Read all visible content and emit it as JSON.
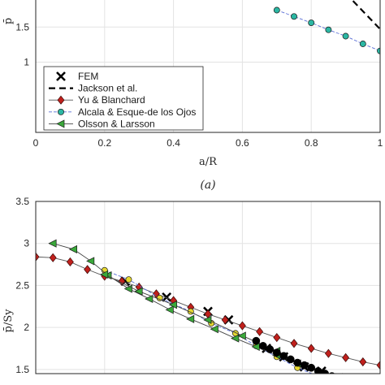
{
  "chart_data": [
    {
      "type": "line",
      "caption": "(a)",
      "xlabel": "a/R",
      "ylabel": "p̄",
      "xlim": [
        0,
        1
      ],
      "ylim": [
        0,
        2
      ],
      "x_ticks": [
        "0",
        "0.2",
        "0.4",
        "0.6",
        "0.8",
        "1"
      ],
      "y_ticks": [
        "1",
        "1.5"
      ],
      "grid": true,
      "legend_position": "bottom-left",
      "series": [
        {
          "name": "FEM",
          "marker": "x",
          "color": "#000000",
          "x": [],
          "y": []
        },
        {
          "name": "Jackson et al.",
          "line": "dashed",
          "color": "#000000",
          "x": [
            0.9,
            1.0
          ],
          "y": [
            1.98,
            1.47
          ]
        },
        {
          "name": "Yu & Blanchard",
          "marker": "diamond",
          "color": "#c0201c",
          "x": [],
          "y": []
        },
        {
          "name": "Alcala & Esque-de los Ojos",
          "marker": "circle",
          "color": "#2bb7a3",
          "x": [
            0.7,
            0.75,
            0.8,
            0.85,
            0.9,
            0.95,
            1.0
          ],
          "y": [
            1.74,
            1.65,
            1.56,
            1.46,
            1.37,
            1.26,
            1.16
          ]
        },
        {
          "name": "Olsson & Larsson",
          "marker": "triangle-left",
          "color": "#3aa83a",
          "x": [],
          "y": []
        }
      ]
    },
    {
      "type": "line",
      "xlabel": "",
      "ylabel": "p̄/Sy",
      "xlim": [
        0,
        1
      ],
      "ylim": [
        1.45,
        3.5
      ],
      "y_ticks": [
        "1.5",
        "2",
        "2.5",
        "3",
        "3.5"
      ],
      "grid": true,
      "series": [
        {
          "name": "FEM",
          "marker": "x",
          "color": "#000000",
          "x": [
            0.26,
            0.38,
            0.5,
            0.56,
            0.67,
            0.72,
            0.78,
            0.83,
            0.88,
            0.94,
            0.99
          ],
          "y": [
            2.55,
            2.36,
            2.19,
            2.09,
            1.75,
            1.65,
            1.53,
            1.48,
            1.4,
            1.33,
            1.31
          ]
        },
        {
          "name": "Yu & Blanchard",
          "marker": "diamond",
          "color": "#c0201c",
          "x": [
            0.0,
            0.05,
            0.1,
            0.15,
            0.2,
            0.25,
            0.3,
            0.35,
            0.4,
            0.45,
            0.5,
            0.55,
            0.6,
            0.65,
            0.7,
            0.75,
            0.8,
            0.85,
            0.9,
            0.95,
            1.0
          ],
          "y": [
            2.84,
            2.83,
            2.78,
            2.69,
            2.61,
            2.55,
            2.48,
            2.4,
            2.32,
            2.24,
            2.16,
            2.09,
            2.02,
            1.95,
            1.88,
            1.81,
            1.75,
            1.69,
            1.64,
            1.59,
            1.55
          ]
        },
        {
          "name": "Alcala & Esque-de los Ojos",
          "marker": "circle",
          "color": "#e6d830",
          "x": [
            0.2,
            0.27,
            0.36,
            0.45,
            0.51,
            0.58,
            0.64,
            0.7,
            0.76,
            0.82,
            0.88
          ],
          "y": [
            2.68,
            2.57,
            2.35,
            2.19,
            2.05,
            1.93,
            1.78,
            1.65,
            1.52,
            1.42,
            1.35
          ]
        },
        {
          "name": "Olsson & Larsson",
          "marker": "triangle-left",
          "color": "#3aa83a",
          "x": [
            0.05,
            0.11,
            0.16,
            0.21,
            0.27,
            0.33,
            0.39,
            0.45,
            0.52,
            0.58,
            0.64,
            0.7,
            0.76
          ],
          "y": [
            3.0,
            2.93,
            2.79,
            2.62,
            2.46,
            2.34,
            2.21,
            2.1,
            1.98,
            1.87,
            1.77,
            1.67,
            1.57
          ]
        },
        {
          "name": "Olsson & Larsson",
          "marker": "triangle-left",
          "color": "#3aa83a",
          "x": [
            0.2,
            0.3,
            0.4,
            0.5,
            0.6,
            0.7
          ],
          "y": [
            2.63,
            2.43,
            2.27,
            2.09,
            1.9,
            1.72
          ]
        },
        {
          "name": "FEM",
          "marker": "filled-circle",
          "color": "#000000",
          "x": [
            0.64,
            0.66,
            0.68,
            0.7,
            0.72,
            0.74,
            0.76,
            0.78,
            0.8,
            0.82,
            0.84,
            0.86,
            0.88,
            0.9
          ],
          "y": [
            1.84,
            1.78,
            1.74,
            1.7,
            1.66,
            1.62,
            1.58,
            1.55,
            1.52,
            1.48,
            1.45,
            1.42,
            1.39,
            1.36
          ]
        }
      ]
    }
  ]
}
